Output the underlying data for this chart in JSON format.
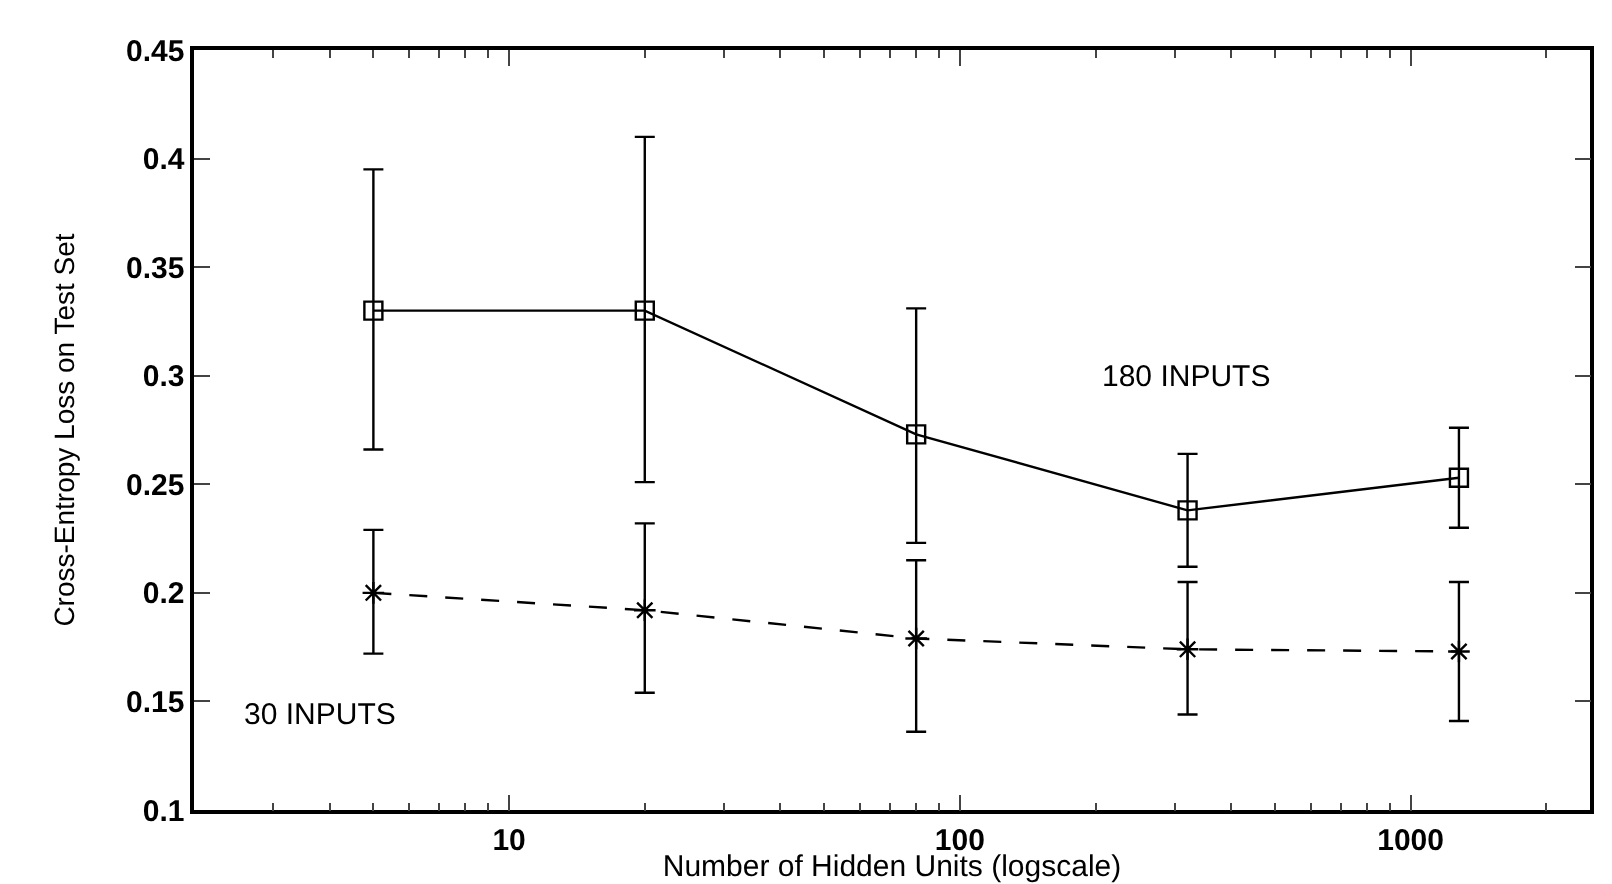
{
  "chart_data": {
    "type": "line",
    "xlabel": "Number of Hidden Units (logscale)",
    "ylabel": "Cross-Entropy Loss on Test Set",
    "log": "x",
    "xlim": [
      2,
      2500
    ],
    "xticks": [
      10,
      100,
      1000
    ],
    "ylim": [
      0.1,
      0.45
    ],
    "yticks": [
      0.1,
      0.15,
      0.2,
      0.25,
      0.3,
      0.35,
      0.4,
      0.45
    ],
    "x": [
      5,
      20,
      80,
      320,
      1280
    ],
    "series": [
      {
        "color": "#000000",
        "marker": "square",
        "line_style": "solid",
        "values": [
          0.33,
          0.33,
          0.273,
          0.238,
          0.253
        ],
        "errors": [
          [
            0.266,
            0.395
          ],
          [
            0.251,
            0.41
          ],
          [
            0.223,
            0.331
          ],
          [
            0.212,
            0.264
          ],
          [
            0.23,
            0.276
          ]
        ]
      },
      {
        "color": "#000000",
        "marker": "cross",
        "line_style": "dashed",
        "values": [
          0.2,
          0.192,
          0.179,
          0.174,
          0.173
        ],
        "errors": [
          [
            0.172,
            0.229
          ],
          [
            0.154,
            0.232
          ],
          [
            0.136,
            0.215
          ],
          [
            0.144,
            0.205
          ],
          [
            0.141,
            0.205
          ]
        ]
      }
    ],
    "annotations": [
      "180 INPUTS",
      "30 INPUTS"
    ]
  }
}
